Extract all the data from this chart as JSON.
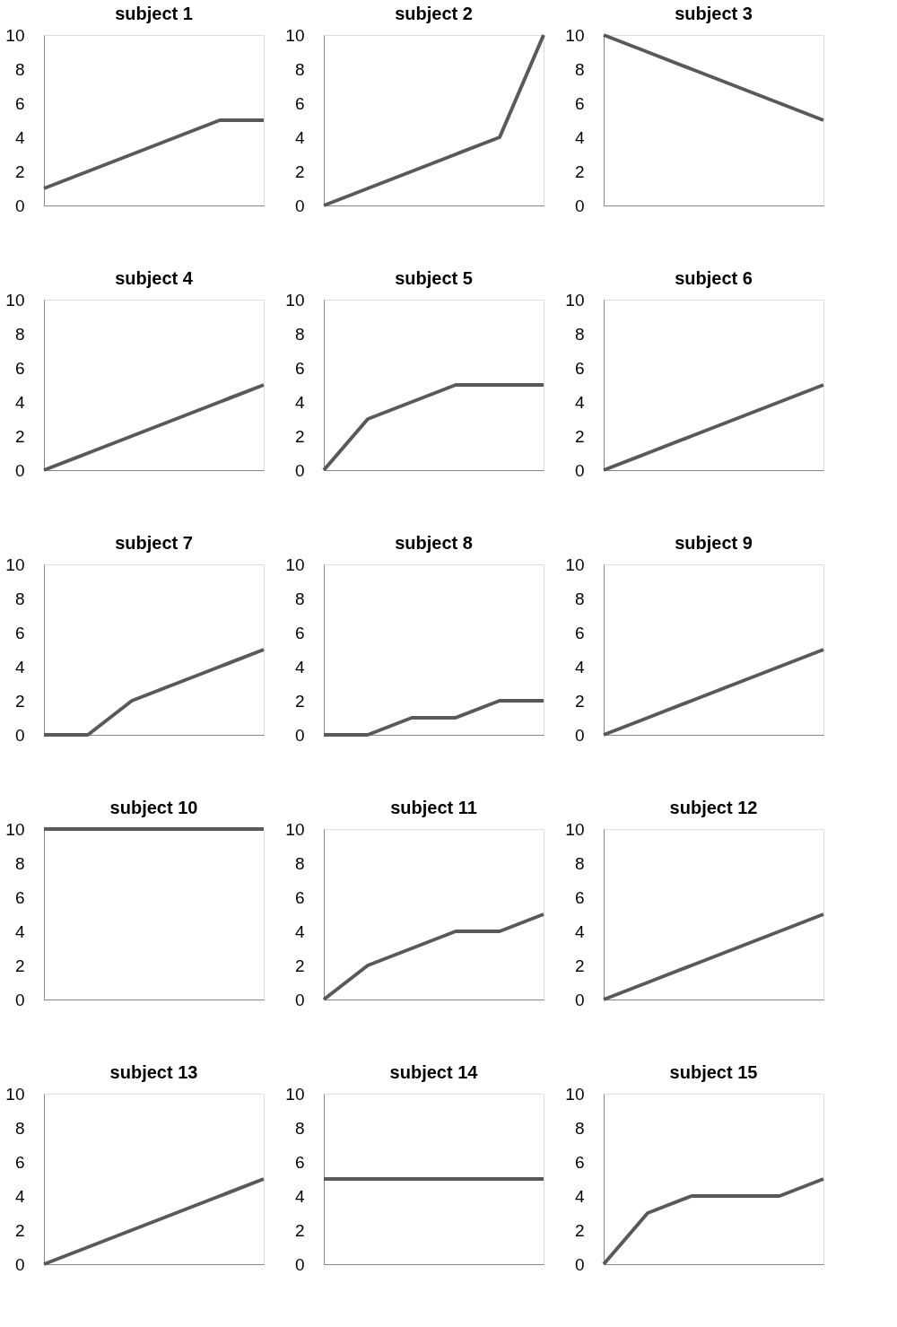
{
  "chart_data": [
    {
      "type": "line",
      "title": "subject 1",
      "categories": [
        null,
        null,
        null,
        null,
        null,
        null
      ],
      "series": [
        {
          "color": "#595959",
          "values": [
            1,
            2,
            3,
            4,
            5,
            5
          ]
        }
      ],
      "ylim": [
        0,
        10
      ],
      "yticks": [
        0,
        2,
        4,
        6,
        8,
        10
      ],
      "tick_labels": "y",
      "grid": false
    },
    {
      "type": "line",
      "title": "subject 2",
      "categories": [
        null,
        null,
        null,
        null,
        null,
        null
      ],
      "series": [
        {
          "color": "#595959",
          "values": [
            0,
            1,
            2,
            3,
            4,
            10
          ]
        }
      ],
      "ylim": [
        0,
        10
      ],
      "yticks": [
        0,
        2,
        4,
        6,
        8,
        10
      ],
      "tick_labels": "y",
      "grid": false
    },
    {
      "type": "line",
      "title": "subject 3",
      "categories": [
        null,
        null,
        null,
        null,
        null,
        null
      ],
      "series": [
        {
          "color": "#595959",
          "values": [
            10,
            9,
            8,
            7,
            6,
            5
          ]
        }
      ],
      "ylim": [
        0,
        10
      ],
      "yticks": [
        0,
        2,
        4,
        6,
        8,
        10
      ],
      "tick_labels": "y",
      "grid": false
    },
    {
      "type": "line",
      "title": "subject 4",
      "categories": [
        null,
        null,
        null,
        null,
        null,
        null
      ],
      "series": [
        {
          "color": "#595959",
          "values": [
            0,
            1,
            2,
            3,
            4,
            5
          ]
        }
      ],
      "ylim": [
        0,
        10
      ],
      "yticks": [
        0,
        2,
        4,
        6,
        8,
        10
      ],
      "tick_labels": "y",
      "grid": false
    },
    {
      "type": "line",
      "title": "subject 5",
      "categories": [
        null,
        null,
        null,
        null,
        null,
        null
      ],
      "series": [
        {
          "color": "#595959",
          "values": [
            0,
            3,
            4,
            5,
            5,
            5
          ]
        }
      ],
      "ylim": [
        0,
        10
      ],
      "yticks": [
        0,
        2,
        4,
        6,
        8,
        10
      ],
      "tick_labels": "y",
      "grid": false
    },
    {
      "type": "line",
      "title": "subject 6",
      "categories": [
        null,
        null,
        null,
        null,
        null,
        null
      ],
      "series": [
        {
          "color": "#595959",
          "values": [
            0,
            1,
            2,
            3,
            4,
            5
          ]
        }
      ],
      "ylim": [
        0,
        10
      ],
      "yticks": [
        0,
        2,
        4,
        6,
        8,
        10
      ],
      "tick_labels": "y",
      "grid": false
    },
    {
      "type": "line",
      "title": "subject 7",
      "categories": [
        null,
        null,
        null,
        null,
        null,
        null
      ],
      "series": [
        {
          "color": "#595959",
          "values": [
            0,
            0,
            2,
            3,
            4,
            5
          ]
        }
      ],
      "ylim": [
        0,
        10
      ],
      "yticks": [
        0,
        2,
        4,
        6,
        8,
        10
      ],
      "tick_labels": "y",
      "grid": false
    },
    {
      "type": "line",
      "title": "subject 8",
      "categories": [
        null,
        null,
        null,
        null,
        null,
        null
      ],
      "series": [
        {
          "color": "#595959",
          "values": [
            0,
            0,
            1,
            1,
            2,
            2
          ]
        }
      ],
      "ylim": [
        0,
        10
      ],
      "yticks": [
        0,
        2,
        4,
        6,
        8,
        10
      ],
      "tick_labels": "y",
      "grid": false
    },
    {
      "type": "line",
      "title": "subject 9",
      "categories": [
        null,
        null,
        null,
        null,
        null,
        null
      ],
      "series": [
        {
          "color": "#595959",
          "values": [
            0,
            1,
            2,
            3,
            4,
            5
          ]
        }
      ],
      "ylim": [
        0,
        10
      ],
      "yticks": [
        0,
        2,
        4,
        6,
        8,
        10
      ],
      "tick_labels": "y",
      "grid": false
    },
    {
      "type": "line",
      "title": "subject 10",
      "categories": [
        null,
        null,
        null,
        null,
        null,
        null
      ],
      "series": [
        {
          "color": "#595959",
          "values": [
            10,
            10,
            10,
            10,
            10,
            10
          ]
        }
      ],
      "ylim": [
        0,
        10
      ],
      "yticks": [
        0,
        2,
        4,
        6,
        8,
        10
      ],
      "tick_labels": "y",
      "grid": false
    },
    {
      "type": "line",
      "title": "subject 11",
      "categories": [
        null,
        null,
        null,
        null,
        null,
        null
      ],
      "series": [
        {
          "color": "#595959",
          "values": [
            0,
            2,
            3,
            4,
            4,
            5
          ]
        }
      ],
      "ylim": [
        0,
        10
      ],
      "yticks": [
        0,
        2,
        4,
        6,
        8,
        10
      ],
      "tick_labels": "y",
      "grid": false
    },
    {
      "type": "line",
      "title": "subject 12",
      "categories": [
        null,
        null,
        null,
        null,
        null,
        null
      ],
      "series": [
        {
          "color": "#595959",
          "values": [
            0,
            1,
            2,
            3,
            4,
            5
          ]
        }
      ],
      "ylim": [
        0,
        10
      ],
      "yticks": [
        0,
        2,
        4,
        6,
        8,
        10
      ],
      "tick_labels": "y",
      "grid": false
    },
    {
      "type": "line",
      "title": "subject 13",
      "categories": [
        null,
        null,
        null,
        null,
        null,
        null
      ],
      "series": [
        {
          "color": "#595959",
          "values": [
            0,
            1,
            2,
            3,
            4,
            5
          ]
        }
      ],
      "ylim": [
        0,
        10
      ],
      "yticks": [
        0,
        2,
        4,
        6,
        8,
        10
      ],
      "tick_labels": "y",
      "grid": false
    },
    {
      "type": "line",
      "title": "subject 14",
      "categories": [
        null,
        null,
        null,
        null,
        null,
        null
      ],
      "series": [
        {
          "color": "#595959",
          "values": [
            5,
            5,
            5,
            5,
            5,
            5
          ]
        }
      ],
      "ylim": [
        0,
        10
      ],
      "yticks": [
        0,
        2,
        4,
        6,
        8,
        10
      ],
      "tick_labels": "y",
      "grid": false
    },
    {
      "type": "line",
      "title": "subject 15",
      "categories": [
        null,
        null,
        null,
        null,
        null,
        null
      ],
      "series": [
        {
          "color": "#595959",
          "values": [
            0,
            3,
            4,
            4,
            4,
            5
          ]
        }
      ],
      "ylim": [
        0,
        10
      ],
      "yticks": [
        0,
        2,
        4,
        6,
        8,
        10
      ],
      "tick_labels": "y",
      "grid": false
    }
  ]
}
